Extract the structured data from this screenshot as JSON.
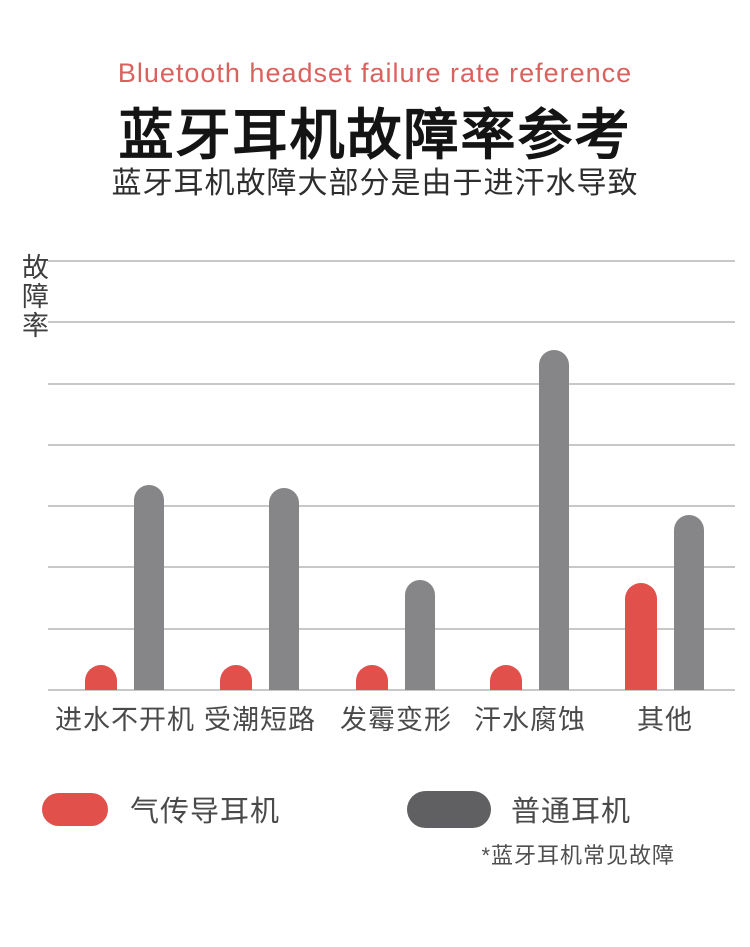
{
  "header": {
    "subtitle_en": "Bluetooth headset failure rate reference",
    "title": "蓝牙耳机故障率参考",
    "subtitle_zh": "蓝牙耳机故障大部分是由于进汗水导致"
  },
  "chart_data": {
    "type": "bar",
    "title": "蓝牙耳机故障率参考",
    "ylabel": "故障率",
    "xlabel": "",
    "categories": [
      "进水不开机",
      "受潮短路",
      "发霉变形",
      "汗水腐蚀",
      "其他"
    ],
    "series": [
      {
        "name": "气传导耳机",
        "color": "#e2504b",
        "values": [
          4,
          4,
          4,
          4,
          17.5
        ]
      },
      {
        "name": "普通耳机",
        "color": "#868688",
        "values": [
          33.5,
          33,
          18,
          55.5,
          28.5
        ]
      }
    ],
    "ylim": [
      0,
      70
    ],
    "y_tick_labels_visible": false,
    "gridline_count": 8,
    "grid": true,
    "legend_position": "bottom"
  },
  "legend": {
    "items": [
      {
        "label": "气传导耳机",
        "color": "#e2504b"
      },
      {
        "label": "普通耳机",
        "color": "#606062"
      }
    ]
  },
  "footnote": "*蓝牙耳机常见故障"
}
